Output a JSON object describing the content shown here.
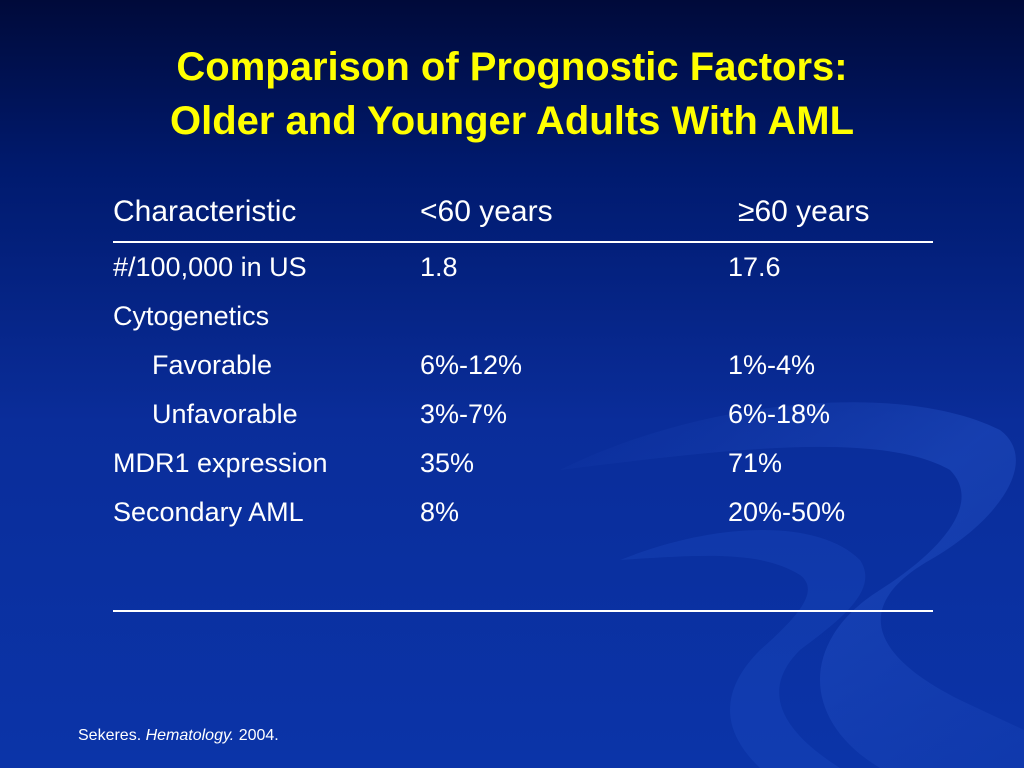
{
  "slide": {
    "title_line1": "Comparison of Prognostic Factors:",
    "title_line2": "Older and Younger Adults With AML"
  },
  "table": {
    "headers": [
      "Characteristic",
      "<60 years",
      "≥60 years"
    ],
    "rows": [
      {
        "label": "#/100,000 in US",
        "younger": "1.8",
        "older": "17.6"
      },
      {
        "label": "Cytogenetics",
        "younger": "",
        "older": ""
      },
      {
        "label": "Favorable",
        "younger": "6%-12%",
        "older": "1%-4%"
      },
      {
        "label": "Unfavorable",
        "younger": "3%-7%",
        "older": "6%-18%"
      },
      {
        "label": "MDR1 expression",
        "younger": "35%",
        "older": "71%"
      },
      {
        "label": "Secondary AML",
        "younger": "8%",
        "older": "20%-50%"
      }
    ]
  },
  "source": {
    "author": "Sekeres.",
    "journal": "Hematology.",
    "year": "2004."
  },
  "colors": {
    "background_top": "#000a3a",
    "background_bottom": "#0b34a8",
    "title": "#ffff00",
    "text": "#ffffff"
  }
}
